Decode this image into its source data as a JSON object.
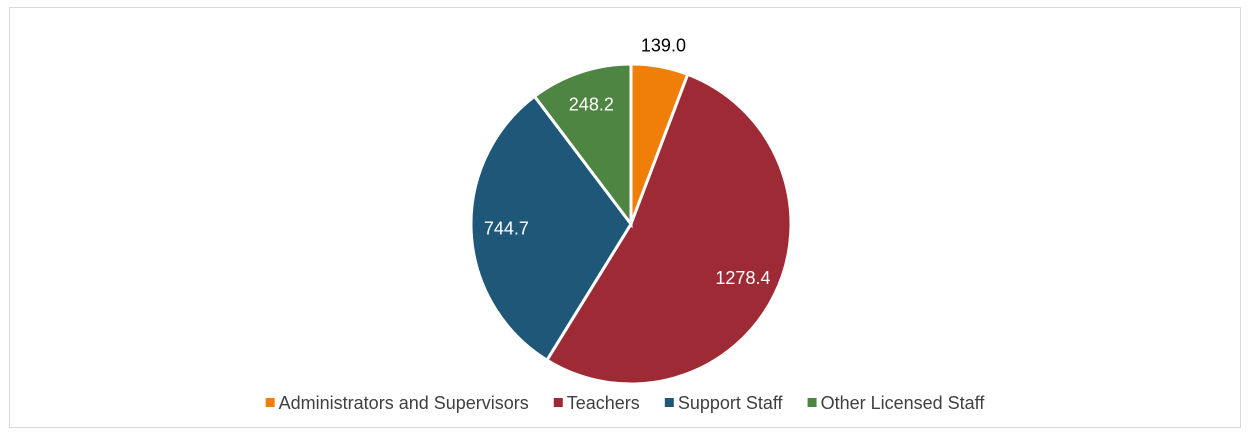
{
  "chart_data": {
    "type": "pie",
    "categories": [
      "Administrators and Supervisors",
      "Teachers",
      "Support Staff",
      "Other Licensed Staff"
    ],
    "values": [
      139.0,
      1278.4,
      744.7,
      248.2
    ],
    "value_labels": [
      "139.0",
      "1278.4",
      "744.7",
      "248.2"
    ],
    "colors": [
      "#f07f09",
      "#9e2a36",
      "#1f5779",
      "#4e8542"
    ],
    "legend": "bottom"
  }
}
